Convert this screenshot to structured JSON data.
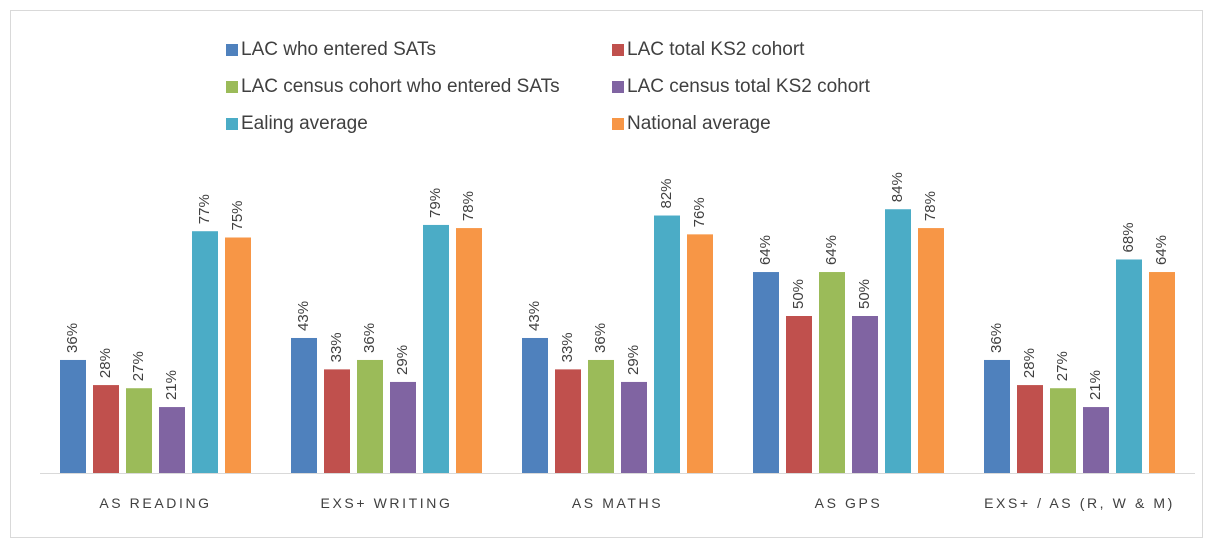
{
  "chart_data": {
    "type": "bar",
    "legend": "top",
    "categories": [
      "AS READING",
      "EXS+ WRITING",
      "AS MATHS",
      "AS GPS",
      "EXS+ / AS (R, W & M)"
    ],
    "series": [
      {
        "name": "LAC who entered SATs",
        "color": "#4f81bd",
        "values": [
          36,
          43,
          43,
          64,
          36
        ],
        "value_labels": [
          "36%",
          "43%",
          "43%",
          "64%",
          "36%"
        ]
      },
      {
        "name": "LAC total KS2 cohort",
        "color": "#c0504d",
        "values": [
          28,
          33,
          33,
          50,
          28
        ],
        "value_labels": [
          "28%",
          "33%",
          "33%",
          "50%",
          "28%"
        ]
      },
      {
        "name": "LAC census cohort who entered SATs",
        "color": "#9bbb59",
        "values": [
          27,
          36,
          36,
          64,
          27
        ],
        "value_labels": [
          "27%",
          "36%",
          "36%",
          "64%",
          "27%"
        ]
      },
      {
        "name": "LAC census total KS2 cohort",
        "color": "#8064a2",
        "values": [
          21,
          29,
          29,
          50,
          21
        ],
        "value_labels": [
          "21%",
          "29%",
          "29%",
          "50%",
          "21%"
        ]
      },
      {
        "name": "Ealing average",
        "color": "#4bacc6",
        "values": [
          77,
          79,
          82,
          84,
          68
        ],
        "value_labels": [
          "77%",
          "79%",
          "82%",
          "84%",
          "68%"
        ]
      },
      {
        "name": "National average",
        "color": "#f79646",
        "values": [
          75,
          78,
          76,
          78,
          64
        ],
        "value_labels": [
          "75%",
          "78%",
          "76%",
          "78%",
          "64%"
        ]
      }
    ]
  }
}
